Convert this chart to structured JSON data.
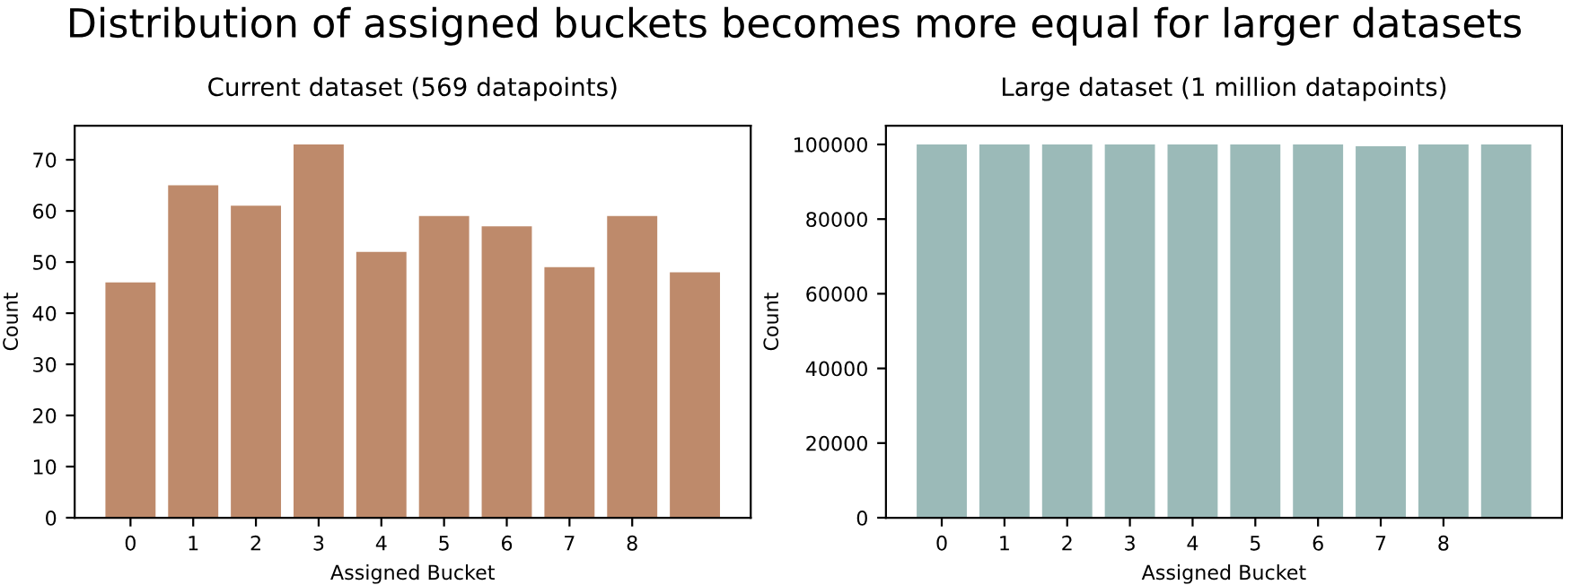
{
  "chart_data": [
    {
      "type": "bar",
      "annotations": [
        "Distribution of assigned buckets becomes more equal for larger datasets"
      ],
      "title": "Current dataset (569 datapoints)",
      "xlabel": "Assigned Bucket",
      "ylabel": "Count",
      "categories": [
        "0",
        "1",
        "2",
        "3",
        "4",
        "5",
        "6",
        "7",
        "8",
        null
      ],
      "values": [
        46,
        65,
        61,
        73,
        52,
        59,
        57,
        49,
        59,
        48
      ],
      "color": "#be8a6b",
      "ylim": [
        0,
        76.65
      ],
      "yticks": [
        0,
        10,
        20,
        30,
        40,
        50,
        60,
        70
      ],
      "grid": false,
      "legend": false
    },
    {
      "type": "bar",
      "title": "Large dataset (1 million datapoints)",
      "xlabel": "Assigned Bucket",
      "ylabel": "Count",
      "categories": [
        "0",
        "1",
        "2",
        "3",
        "4",
        "5",
        "6",
        "7",
        "8",
        null
      ],
      "values": [
        100000,
        100000,
        100000,
        100000,
        100000,
        100000,
        100000,
        99500,
        100000,
        100000
      ],
      "color": "#9bbab8",
      "ylim": [
        0,
        105000
      ],
      "yticks": [
        0,
        20000,
        40000,
        60000,
        80000,
        100000
      ],
      "grid": false,
      "legend": false
    }
  ]
}
